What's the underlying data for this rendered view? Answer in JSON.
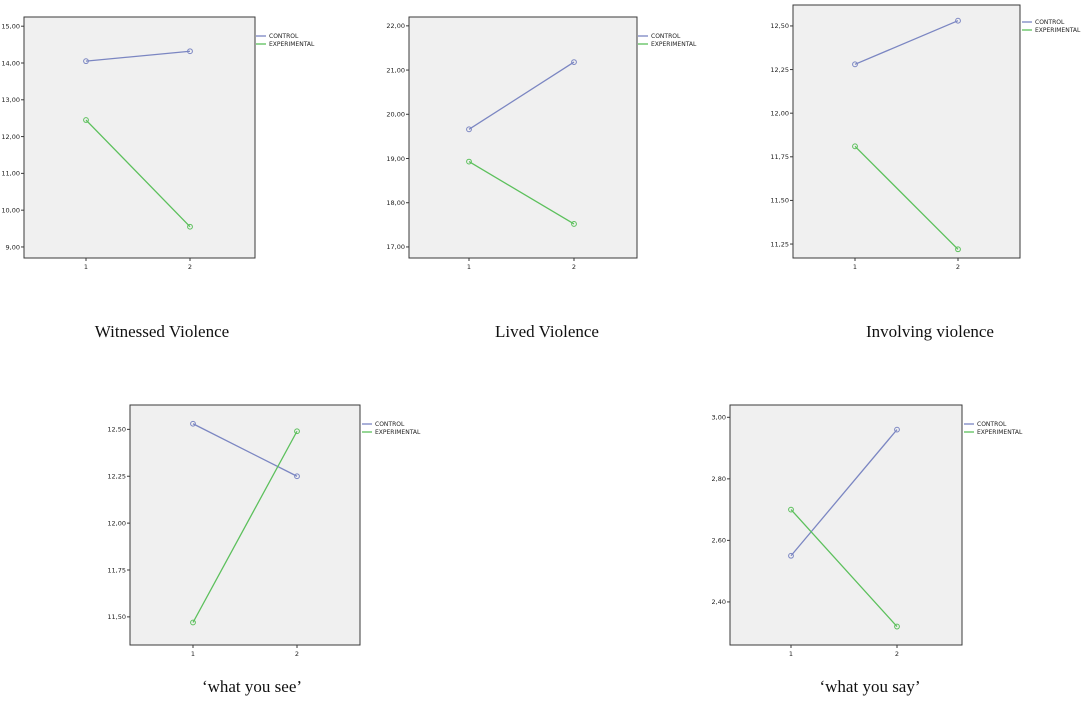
{
  "chart_data": [
    {
      "type": "line",
      "caption": "Witnessed Violence",
      "categories": [
        "1",
        "2"
      ],
      "series": [
        {
          "name": "CONTROL",
          "color": "#7b86c2",
          "values": [
            14.05,
            14.32
          ]
        },
        {
          "name": "EXPERIMENTAL",
          "color": "#5cc05c",
          "values": [
            12.45,
            9.55
          ]
        }
      ],
      "ylim": [
        8.7,
        15.25
      ],
      "yticks": [
        {
          "value": 9,
          "label": "9,00"
        },
        {
          "value": 10,
          "label": "10,00"
        },
        {
          "value": 11,
          "label": "11,00"
        },
        {
          "value": 12,
          "label": "12,00"
        },
        {
          "value": 13,
          "label": "13,00"
        },
        {
          "value": 14,
          "label": "14,00"
        },
        {
          "value": 15,
          "label": "15,00"
        }
      ],
      "legend": "top-right",
      "grid": false
    },
    {
      "type": "line",
      "caption": "Lived Violence",
      "categories": [
        "1",
        "2"
      ],
      "series": [
        {
          "name": "CONTROL",
          "color": "#7b86c2",
          "values": [
            19.66,
            21.18
          ]
        },
        {
          "name": "EXPERIMENTAL",
          "color": "#5cc05c",
          "values": [
            18.93,
            17.52
          ]
        }
      ],
      "ylim": [
        16.75,
        22.2
      ],
      "yticks": [
        {
          "value": 17,
          "label": "17,00"
        },
        {
          "value": 18,
          "label": "18,00"
        },
        {
          "value": 19,
          "label": "19,00"
        },
        {
          "value": 20,
          "label": "20,00"
        },
        {
          "value": 21,
          "label": "21,00"
        },
        {
          "value": 22,
          "label": "22,00"
        }
      ],
      "legend": "top-right",
      "grid": false
    },
    {
      "type": "line",
      "caption": "Involving violence",
      "categories": [
        "1",
        "2"
      ],
      "series": [
        {
          "name": "CONTROL",
          "color": "#7b86c2",
          "values": [
            12.28,
            12.53
          ]
        },
        {
          "name": "EXPERIMENTAL",
          "color": "#5cc05c",
          "values": [
            11.81,
            11.22
          ]
        }
      ],
      "ylim": [
        11.17,
        12.62
      ],
      "yticks": [
        {
          "value": 11.25,
          "label": "11,25"
        },
        {
          "value": 11.5,
          "label": "11,50"
        },
        {
          "value": 11.75,
          "label": "11,75"
        },
        {
          "value": 12,
          "label": "12,00"
        },
        {
          "value": 12.25,
          "label": "12,25"
        },
        {
          "value": 12.5,
          "label": "12,50"
        }
      ],
      "legend": "top-right",
      "grid": false
    },
    {
      "type": "line",
      "caption": "‘what you see’",
      "categories": [
        "1",
        "2"
      ],
      "series": [
        {
          "name": "CONTROL",
          "color": "#7b86c2",
          "values": [
            12.53,
            12.25
          ]
        },
        {
          "name": "EXPERIMENTAL",
          "color": "#5cc05c",
          "values": [
            11.47,
            12.49
          ]
        }
      ],
      "ylim": [
        11.35,
        12.63
      ],
      "yticks": [
        {
          "value": 11.5,
          "label": "11,50"
        },
        {
          "value": 11.75,
          "label": "11,75"
        },
        {
          "value": 12,
          "label": "12,00"
        },
        {
          "value": 12.25,
          "label": "12,25"
        },
        {
          "value": 12.5,
          "label": "12,50"
        }
      ],
      "legend": "top-right",
      "grid": false
    },
    {
      "type": "line",
      "caption": "‘what you say’",
      "categories": [
        "1",
        "2"
      ],
      "series": [
        {
          "name": "CONTROL",
          "color": "#7b86c2",
          "values": [
            2.55,
            2.96
          ]
        },
        {
          "name": "EXPERIMENTAL",
          "color": "#5cc05c",
          "values": [
            2.7,
            2.32
          ]
        }
      ],
      "ylim": [
        2.26,
        3.04
      ],
      "yticks": [
        {
          "value": 2.4,
          "label": "2,40"
        },
        {
          "value": 2.6,
          "label": "2,60"
        },
        {
          "value": 2.8,
          "label": "2,80"
        },
        {
          "value": 3,
          "label": "3,00"
        }
      ],
      "legend": "top-right",
      "grid": false
    }
  ]
}
